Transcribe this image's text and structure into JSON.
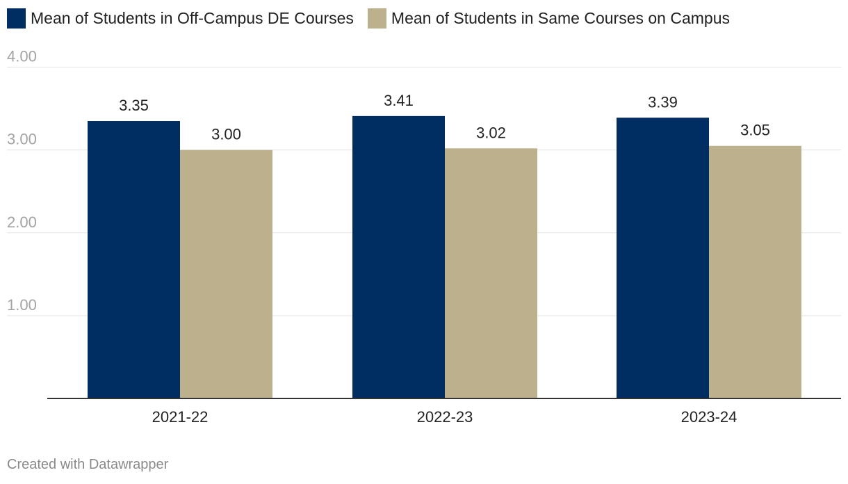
{
  "chart_data": {
    "type": "bar",
    "categories": [
      "2021-22",
      "2022-23",
      "2023-24"
    ],
    "series": [
      {
        "name": "Mean of Students in Off-Campus DE Courses",
        "color": "#002d62",
        "values": [
          3.35,
          3.41,
          3.39
        ],
        "labels": [
          "3.35",
          "3.41",
          "3.39"
        ]
      },
      {
        "name": "Mean of Students in Same Courses on Campus",
        "color": "#bdb08d",
        "values": [
          3.0,
          3.02,
          3.05
        ],
        "labels": [
          "3.00",
          "3.02",
          "3.05"
        ]
      }
    ],
    "yticks": [
      1,
      2,
      3,
      4
    ],
    "ytick_labels": [
      "1.00",
      "2.00",
      "3.00",
      "4.00"
    ],
    "ylim": [
      0,
      4
    ],
    "grid": true,
    "legend": "top-left"
  },
  "credit": "Created with Datawrapper"
}
